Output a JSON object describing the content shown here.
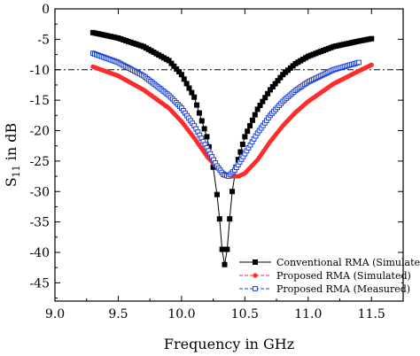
{
  "chart_data": {
    "type": "line",
    "title": "",
    "xlabel": "Frequency in GHz",
    "ylabel_main": "S",
    "ylabel_sub": "11",
    "ylabel_rest": " in dB",
    "xlim": [
      9.0,
      11.75
    ],
    "ylim": [
      -48,
      0
    ],
    "xticks": [
      9.0,
      9.5,
      10.0,
      10.5,
      11.0,
      11.5
    ],
    "xtick_labels": [
      "9.0",
      "9.5",
      "10.0",
      "10.5",
      "11.0",
      "11.5"
    ],
    "yticks": [
      0,
      -5,
      -10,
      -15,
      -20,
      -25,
      -30,
      -35,
      -40,
      -45
    ],
    "ytick_labels": [
      "0",
      "-5",
      "-10",
      "-15",
      "-20",
      "-25",
      "-30",
      "-35",
      "-40",
      "-45"
    ],
    "reference_line": {
      "y": -10,
      "style": "dash-dot"
    },
    "legend_position": "bottom-right",
    "series": [
      {
        "name": "Conventional RMA (Simulated)",
        "color": "#000000",
        "marker": "filled-square",
        "points": [
          [
            9.3,
            -3.9
          ],
          [
            9.5,
            -4.8
          ],
          [
            9.7,
            -6.2
          ],
          [
            9.9,
            -8.5
          ],
          [
            10.0,
            -10.8
          ],
          [
            10.1,
            -14.5
          ],
          [
            10.2,
            -21.0
          ],
          [
            10.25,
            -26.0
          ],
          [
            10.28,
            -30.5
          ],
          [
            10.3,
            -34.5
          ],
          [
            10.32,
            -39.5
          ],
          [
            10.34,
            -42.0
          ],
          [
            10.36,
            -39.5
          ],
          [
            10.38,
            -34.5
          ],
          [
            10.4,
            -30.0
          ],
          [
            10.43,
            -26.0
          ],
          [
            10.5,
            -21.0
          ],
          [
            10.6,
            -16.5
          ],
          [
            10.7,
            -13.3
          ],
          [
            10.8,
            -10.8
          ],
          [
            10.9,
            -9.0
          ],
          [
            11.0,
            -7.8
          ],
          [
            11.2,
            -6.2
          ],
          [
            11.4,
            -5.3
          ],
          [
            11.5,
            -4.9
          ]
        ]
      },
      {
        "name": "Proposed RMA (Simulated)",
        "color": "#ff2a2a",
        "marker": "filled-circle",
        "points": [
          [
            9.3,
            -9.5
          ],
          [
            9.5,
            -11.0
          ],
          [
            9.7,
            -13.3
          ],
          [
            9.9,
            -16.3
          ],
          [
            10.0,
            -18.5
          ],
          [
            10.1,
            -21.2
          ],
          [
            10.2,
            -24.2
          ],
          [
            10.3,
            -26.5
          ],
          [
            10.35,
            -27.2
          ],
          [
            10.4,
            -27.5
          ],
          [
            10.45,
            -27.5
          ],
          [
            10.5,
            -27.0
          ],
          [
            10.6,
            -24.8
          ],
          [
            10.7,
            -21.8
          ],
          [
            10.8,
            -19.2
          ],
          [
            10.9,
            -17.0
          ],
          [
            11.0,
            -15.2
          ],
          [
            11.2,
            -12.3
          ],
          [
            11.4,
            -10.2
          ],
          [
            11.5,
            -9.2
          ]
        ]
      },
      {
        "name": "Proposed RMA (Measured)",
        "color": "#1a3fd6",
        "marker": "open-square",
        "points": [
          [
            9.3,
            -7.3
          ],
          [
            9.5,
            -8.8
          ],
          [
            9.7,
            -11.0
          ],
          [
            9.9,
            -14.2
          ],
          [
            10.0,
            -16.3
          ],
          [
            10.1,
            -19.2
          ],
          [
            10.2,
            -22.8
          ],
          [
            10.28,
            -25.8
          ],
          [
            10.33,
            -27.2
          ],
          [
            10.37,
            -27.5
          ],
          [
            10.42,
            -26.5
          ],
          [
            10.5,
            -23.8
          ],
          [
            10.6,
            -20.4
          ],
          [
            10.7,
            -17.5
          ],
          [
            10.8,
            -15.2
          ],
          [
            10.9,
            -13.4
          ],
          [
            11.0,
            -12.0
          ],
          [
            11.2,
            -10.0
          ],
          [
            11.4,
            -8.8
          ]
        ]
      }
    ]
  }
}
